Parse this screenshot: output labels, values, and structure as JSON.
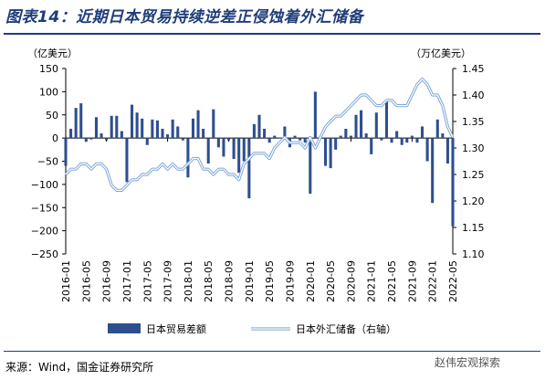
{
  "title": "图表14：近期日本贸易持续逆差正侵蚀着外汇储备",
  "source": "来源：Wind，国金证券研究所",
  "watermark": "赵伟宏观探索",
  "chart_data": {
    "type": "bar+line",
    "left_unit": "（亿美元）",
    "right_unit": "（万亿美元）",
    "left_ylim": [
      -250,
      150
    ],
    "right_ylim": [
      1.1,
      1.45
    ],
    "left_ticks": [
      "150",
      "100",
      "50",
      "0",
      "−50",
      "−100",
      "−150",
      "−200",
      "−250"
    ],
    "right_ticks": [
      "1.45",
      "1.40",
      "1.35",
      "1.30",
      "1.25",
      "1.20",
      "1.15",
      "1.10"
    ],
    "x_tick_labels": [
      "2016-01",
      "2016-05",
      "2016-09",
      "2017-01",
      "2017-05",
      "2017-09",
      "2018-01",
      "2018-05",
      "2018-09",
      "2019-01",
      "2019-05",
      "2019-09",
      "2020-01",
      "2020-05",
      "2020-09",
      "2021-01",
      "2021-05",
      "2021-09",
      "2022-01",
      "2022-05"
    ],
    "months": [
      "2016-01",
      "2016-02",
      "2016-03",
      "2016-04",
      "2016-05",
      "2016-06",
      "2016-07",
      "2016-08",
      "2016-09",
      "2016-10",
      "2016-11",
      "2016-12",
      "2017-01",
      "2017-02",
      "2017-03",
      "2017-04",
      "2017-05",
      "2017-06",
      "2017-07",
      "2017-08",
      "2017-09",
      "2017-10",
      "2017-11",
      "2017-12",
      "2018-01",
      "2018-02",
      "2018-03",
      "2018-04",
      "2018-05",
      "2018-06",
      "2018-07",
      "2018-08",
      "2018-09",
      "2018-10",
      "2018-11",
      "2018-12",
      "2019-01",
      "2019-02",
      "2019-03",
      "2019-04",
      "2019-05",
      "2019-06",
      "2019-07",
      "2019-08",
      "2019-09",
      "2019-10",
      "2019-11",
      "2019-12",
      "2020-01",
      "2020-02",
      "2020-03",
      "2020-04",
      "2020-05",
      "2020-06",
      "2020-07",
      "2020-08",
      "2020-09",
      "2020-10",
      "2020-11",
      "2020-12",
      "2021-01",
      "2021-02",
      "2021-03",
      "2021-04",
      "2021-05",
      "2021-06",
      "2021-07",
      "2021-08",
      "2021-09",
      "2021-10",
      "2021-11",
      "2021-12",
      "2022-01",
      "2022-02",
      "2022-03",
      "2022-04",
      "2022-05"
    ],
    "series": [
      {
        "name": "日本贸易差额",
        "axis": "left",
        "color": "#2e4f8f",
        "values": [
          -60,
          20,
          65,
          75,
          -8,
          -3,
          45,
          10,
          -5,
          48,
          48,
          15,
          -95,
          72,
          55,
          42,
          -15,
          40,
          38,
          20,
          8,
          40,
          25,
          -5,
          -85,
          42,
          60,
          20,
          -55,
          62,
          -20,
          -40,
          -5,
          -45,
          -75,
          -50,
          -130,
          30,
          50,
          20,
          -10,
          5,
          0,
          25,
          -20,
          5,
          -5,
          -10,
          -120,
          100,
          0,
          -60,
          -65,
          -25,
          5,
          20,
          5,
          50,
          60,
          10,
          -35,
          55,
          -5,
          80,
          -10,
          15,
          -15,
          -10,
          5,
          -10,
          25,
          -50,
          -140,
          40,
          10,
          -55,
          -190
        ]
      },
      {
        "name": "日本外汇储备（右轴）",
        "axis": "right",
        "color": "#7fa7d8",
        "values": [
          1.25,
          1.26,
          1.26,
          1.27,
          1.27,
          1.26,
          1.27,
          1.27,
          1.26,
          1.23,
          1.22,
          1.22,
          1.23,
          1.24,
          1.24,
          1.25,
          1.25,
          1.26,
          1.26,
          1.27,
          1.26,
          1.27,
          1.26,
          1.26,
          1.27,
          1.28,
          1.28,
          1.26,
          1.26,
          1.25,
          1.26,
          1.26,
          1.25,
          1.25,
          1.24,
          1.27,
          1.28,
          1.29,
          1.29,
          1.29,
          1.28,
          1.3,
          1.31,
          1.32,
          1.31,
          1.31,
          1.31,
          1.3,
          1.32,
          1.3,
          1.32,
          1.34,
          1.35,
          1.36,
          1.36,
          1.37,
          1.38,
          1.39,
          1.4,
          1.4,
          1.39,
          1.38,
          1.38,
          1.39,
          1.39,
          1.38,
          1.38,
          1.38,
          1.4,
          1.42,
          1.43,
          1.42,
          1.4,
          1.4,
          1.38,
          1.34,
          1.32
        ]
      }
    ],
    "legend_position": "bottom"
  }
}
